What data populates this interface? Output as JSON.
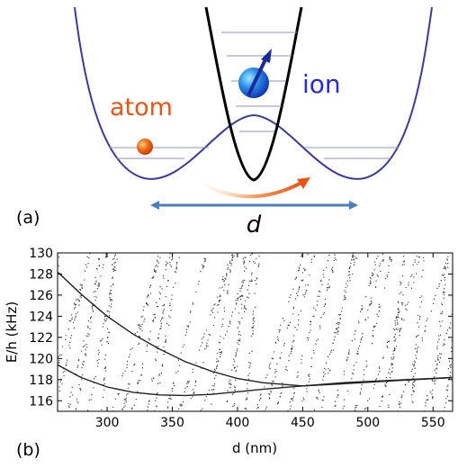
{
  "panel_a": {
    "panel_label": "(a)",
    "atom_label": "atom",
    "ion_label": "ion",
    "distance_label": "d",
    "colors": {
      "atom_potential": "#3a3aa0",
      "ion_potential": "#000000",
      "atom_label": "#e8541a",
      "ion_label": "#2a2ad8",
      "distance_arrow": "#4a7fc1",
      "spin_arrow": "#1a2a9a",
      "transfer_arrow": "#e8541a"
    }
  },
  "panel_b": {
    "panel_label": "(b)",
    "chart_data": {
      "type": "scatter",
      "xlabel": "d (nm)",
      "ylabel": "E/h (kHz)",
      "xlim": [
        262,
        565
      ],
      "ylim": [
        115,
        130
      ],
      "xticks": [
        300,
        350,
        400,
        450,
        500,
        550
      ],
      "yticks": [
        116,
        118,
        120,
        122,
        124,
        126,
        128,
        130
      ],
      "grid": false,
      "series": [
        {
          "x": [
            262,
            280,
            300,
            320,
            340,
            360,
            380,
            400,
            420,
            450,
            480,
            520,
            565
          ],
          "y": [
            128.2,
            126.1,
            124.0,
            122.3,
            120.9,
            119.7,
            118.8,
            118.1,
            117.7,
            117.4,
            117.6,
            117.9,
            118.2
          ]
        },
        {
          "x": [
            262,
            280,
            300,
            320,
            340,
            360,
            380,
            400,
            420,
            450,
            480,
            520,
            565
          ],
          "y": [
            119.4,
            118.2,
            117.3,
            116.8,
            116.55,
            116.5,
            116.6,
            116.85,
            117.1,
            117.4,
            117.7,
            117.95,
            118.2
          ]
        }
      ]
    }
  }
}
